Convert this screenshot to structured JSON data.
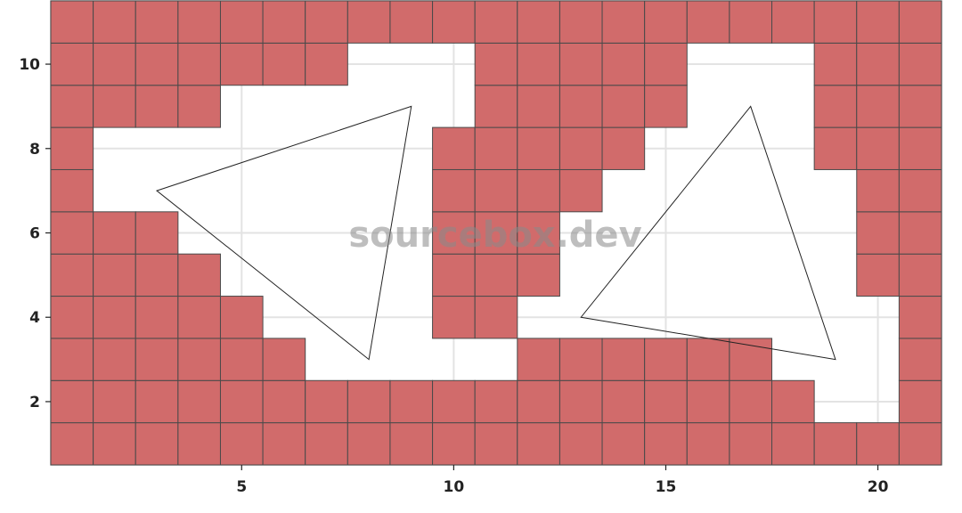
{
  "chart_data": {
    "type": "heatmap",
    "title": "",
    "xlabel": "",
    "ylabel": "",
    "xlim": [
      0.5,
      21.5
    ],
    "ylim": [
      0.5,
      11.5
    ],
    "x_ticks": [
      5,
      10,
      15,
      20
    ],
    "y_ticks": [
      2,
      4,
      6,
      8,
      10
    ],
    "grid": true,
    "cell_size": 1,
    "cell_color": "#d16b6b",
    "cell_edge_color": "#4a4a4a",
    "cells": {
      "1": [
        [
          1,
          21
        ]
      ],
      "2": [
        [
          1,
          18
        ],
        [
          21,
          21
        ]
      ],
      "3": [
        [
          1,
          6
        ],
        [
          12,
          17
        ],
        [
          21,
          21
        ]
      ],
      "4": [
        [
          1,
          5
        ],
        [
          10,
          11
        ],
        [
          21,
          21
        ]
      ],
      "5": [
        [
          1,
          4
        ],
        [
          10,
          12
        ],
        [
          20,
          21
        ]
      ],
      "6": [
        [
          1,
          3
        ],
        [
          10,
          12
        ],
        [
          20,
          21
        ]
      ],
      "7": [
        [
          1,
          1
        ],
        [
          10,
          13
        ],
        [
          20,
          21
        ]
      ],
      "8": [
        [
          1,
          1
        ],
        [
          10,
          14
        ],
        [
          19,
          21
        ]
      ],
      "9": [
        [
          1,
          4
        ],
        [
          11,
          15
        ],
        [
          19,
          21
        ]
      ],
      "10": [
        [
          1,
          7
        ],
        [
          11,
          15
        ],
        [
          19,
          21
        ]
      ],
      "11": [
        [
          1,
          21
        ]
      ]
    },
    "triangles": [
      [
        [
          3,
          7
        ],
        [
          9,
          9
        ],
        [
          8,
          3
        ]
      ],
      [
        [
          17,
          9
        ],
        [
          13,
          4
        ],
        [
          19,
          3
        ]
      ]
    ],
    "triangle_stroke": "#222222"
  },
  "watermark": "sourcebox.dev"
}
